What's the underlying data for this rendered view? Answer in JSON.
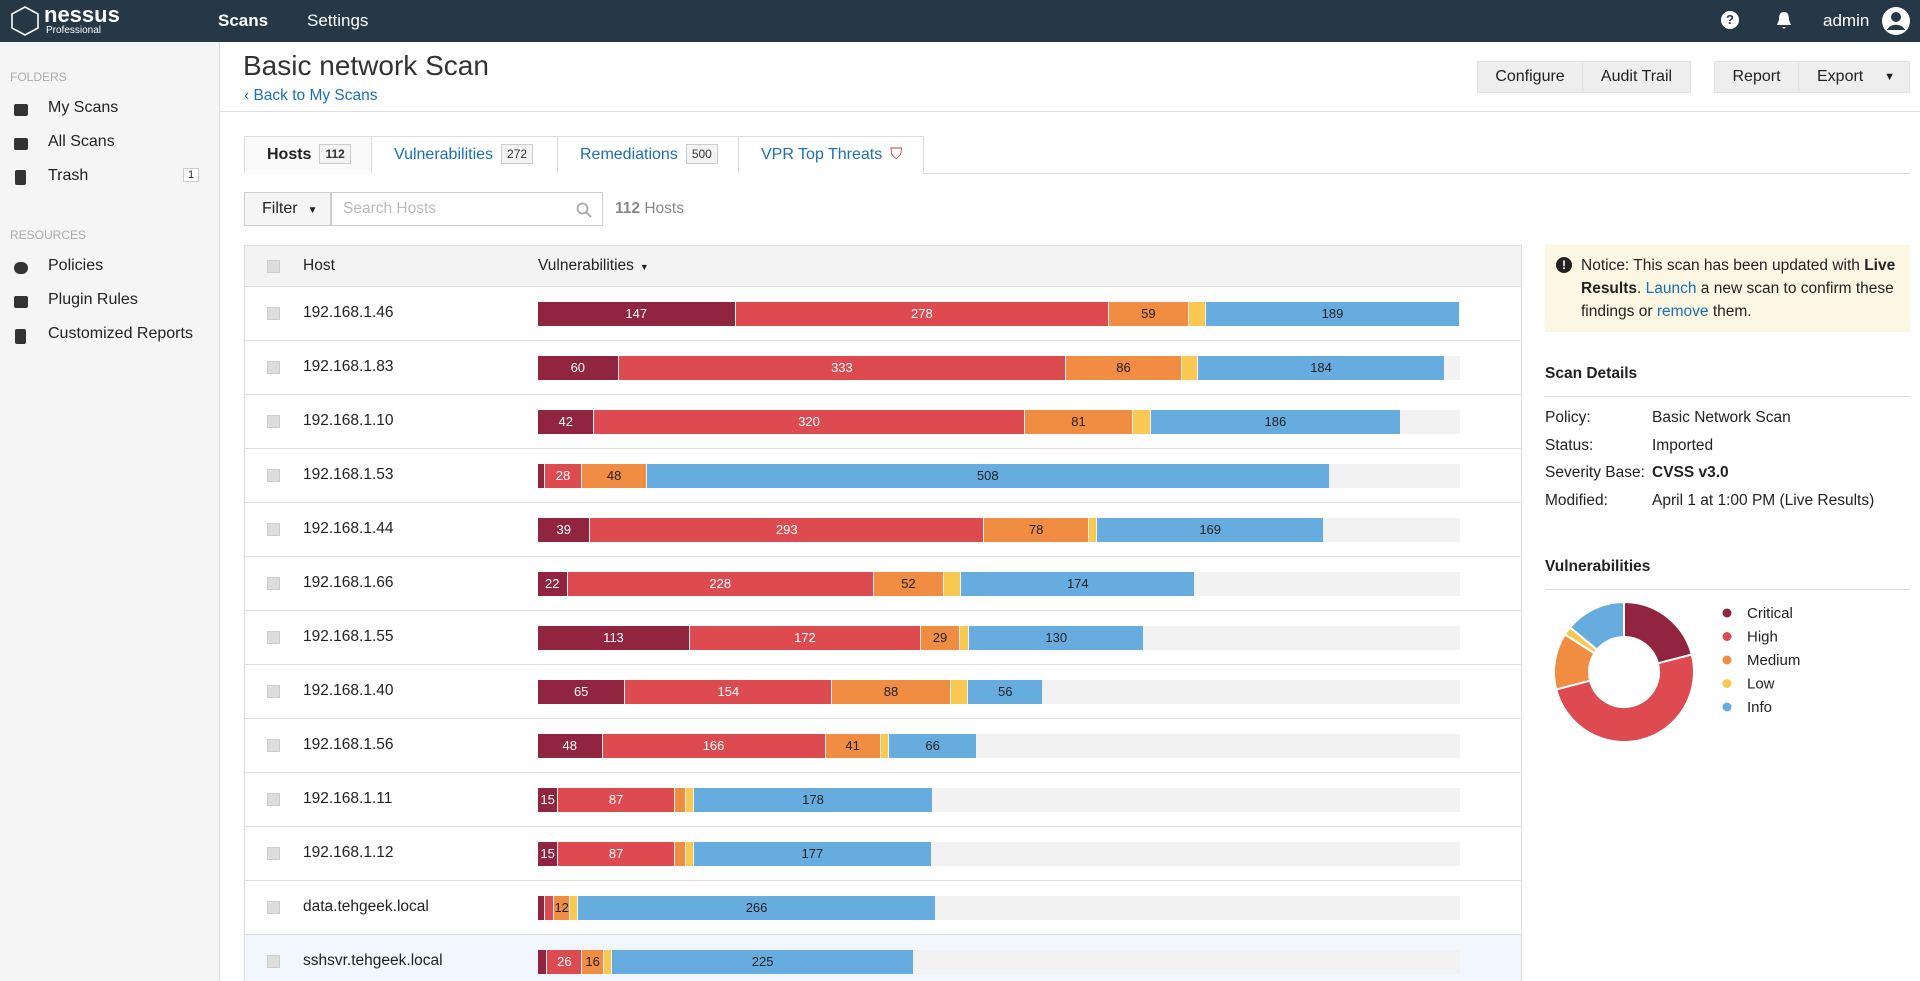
{
  "nav": {
    "brand": "nessus",
    "brand_sub": "Professional",
    "tabs": [
      "Scans",
      "Settings"
    ],
    "help": "?",
    "user": "admin"
  },
  "sidebar": {
    "folders_heading": "FOLDERS",
    "folders": [
      {
        "label": "My Scans"
      },
      {
        "label": "All Scans"
      },
      {
        "label": "Trash",
        "count": 1
      }
    ],
    "resources_heading": "RESOURCES",
    "resources": [
      "Policies",
      "Plugin Rules",
      "Customized Reports"
    ]
  },
  "header": {
    "title": "Basic network Scan",
    "back": "Back to My Scans",
    "buttons": [
      "Configure",
      "Audit Trail",
      "Report",
      "Export"
    ]
  },
  "tabs": [
    {
      "label": "Hosts",
      "count": 112
    },
    {
      "label": "Vulnerabilities",
      "count": 272
    },
    {
      "label": "Remediations",
      "count": 500
    },
    {
      "label": "VPR Top Threats"
    }
  ],
  "filter": {
    "button": "Filter",
    "placeholder": "Search Hosts",
    "count": 112,
    "count_unit": "Hosts"
  },
  "table": {
    "columns": [
      "Host",
      "Vulnerabilities"
    ],
    "severities": [
      {
        "name": "Critical",
        "color": "#91243e"
      },
      {
        "name": "High",
        "color": "#dd4b50"
      },
      {
        "name": "Medium",
        "color": "#f18c43"
      },
      {
        "name": "Low",
        "color": "#f8c851"
      },
      {
        "name": "Info",
        "color": "#67acdf"
      }
    ],
    "rows": [
      {
        "host": "192.168.1.46",
        "counts": [
          147,
          278,
          59,
          13,
          189
        ]
      },
      {
        "host": "192.168.1.83",
        "counts": [
          60,
          333,
          86,
          12,
          184
        ]
      },
      {
        "host": "192.168.1.10",
        "counts": [
          42,
          320,
          81,
          13,
          186
        ]
      },
      {
        "host": "192.168.1.53",
        "counts": [
          5,
          28,
          48,
          0,
          508
        ]
      },
      {
        "host": "192.168.1.44",
        "counts": [
          39,
          293,
          78,
          6,
          169
        ]
      },
      {
        "host": "192.168.1.66",
        "counts": [
          22,
          228,
          52,
          13,
          174
        ]
      },
      {
        "host": "192.168.1.55",
        "counts": [
          113,
          172,
          29,
          7,
          130
        ]
      },
      {
        "host": "192.168.1.40",
        "counts": [
          65,
          154,
          88,
          13,
          56
        ]
      },
      {
        "host": "192.168.1.56",
        "counts": [
          48,
          166,
          41,
          6,
          66
        ]
      },
      {
        "host": "192.168.1.11",
        "counts": [
          15,
          87,
          8,
          6,
          178
        ]
      },
      {
        "host": "192.168.1.12",
        "counts": [
          15,
          87,
          8,
          6,
          177
        ]
      },
      {
        "host": "data.tehgeek.local",
        "counts": [
          5,
          7,
          12,
          6,
          266
        ]
      },
      {
        "host": "sshsvr.tehgeek.local",
        "counts": [
          7,
          26,
          16,
          6,
          225
        ]
      }
    ]
  },
  "notice": {
    "icon": "!",
    "text1": "Notice: This scan has been updated with",
    "bold": "Live Results",
    "dot": ".",
    "link1": "Launch",
    "text2": "a new scan to confirm these findings or",
    "link2": "remove",
    "text3": "them."
  },
  "details": {
    "title": "Scan Details",
    "fields": [
      {
        "label": "Policy:",
        "value": "Basic Network Scan"
      },
      {
        "label": "Status:",
        "value": "Imported"
      },
      {
        "label": "Severity Base:",
        "value": "CVSS v3.0"
      },
      {
        "label": "Modified:",
        "value": "April 1 at 1:00 PM (Live Results)"
      }
    ]
  },
  "chart": {
    "title": "Vulnerabilities",
    "values": [
      21,
      50,
      13,
      2,
      14
    ]
  }
}
